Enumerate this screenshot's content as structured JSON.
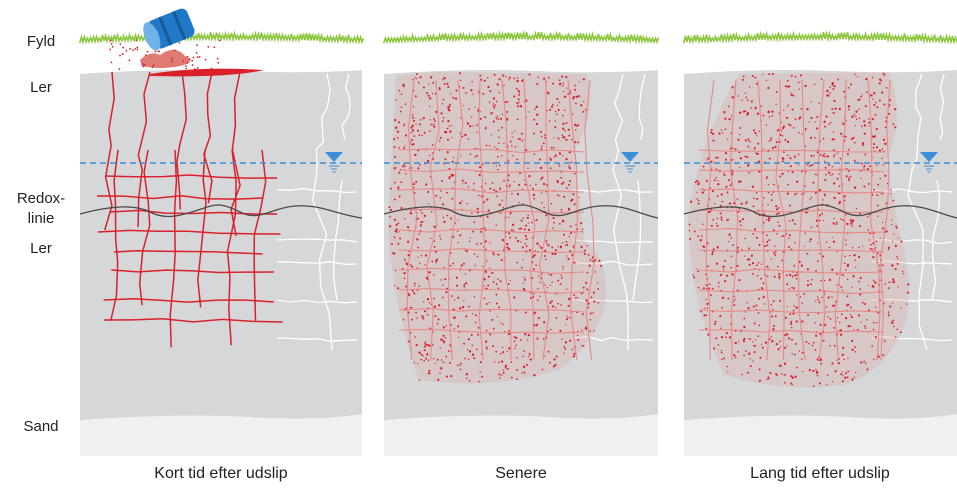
{
  "layer_labels": {
    "fyld": "Fyld",
    "ler_top": "Ler",
    "redox_line1": "Redox-",
    "redox_line2": "linie",
    "ler_bottom": "Ler",
    "sand": "Sand"
  },
  "panels": [
    {
      "caption": "Kort tid efter udslip",
      "stage": "short"
    },
    {
      "caption": "Senere",
      "stage": "later"
    },
    {
      "caption": "Lang tid efter udslip",
      "stage": "long"
    }
  ],
  "colors": {
    "clay": "#d6d7d8",
    "sand": "#f0f0f0",
    "contaminant": "#d9212b",
    "grass": "#8dc63f",
    "water_table": "#3b8fd6",
    "redox_line": "#4a4a4a",
    "barrel": "#1f78c8"
  },
  "icons": {
    "barrel": "oil-barrel-icon",
    "water_table_marker": "water-table-triangle-icon"
  }
}
